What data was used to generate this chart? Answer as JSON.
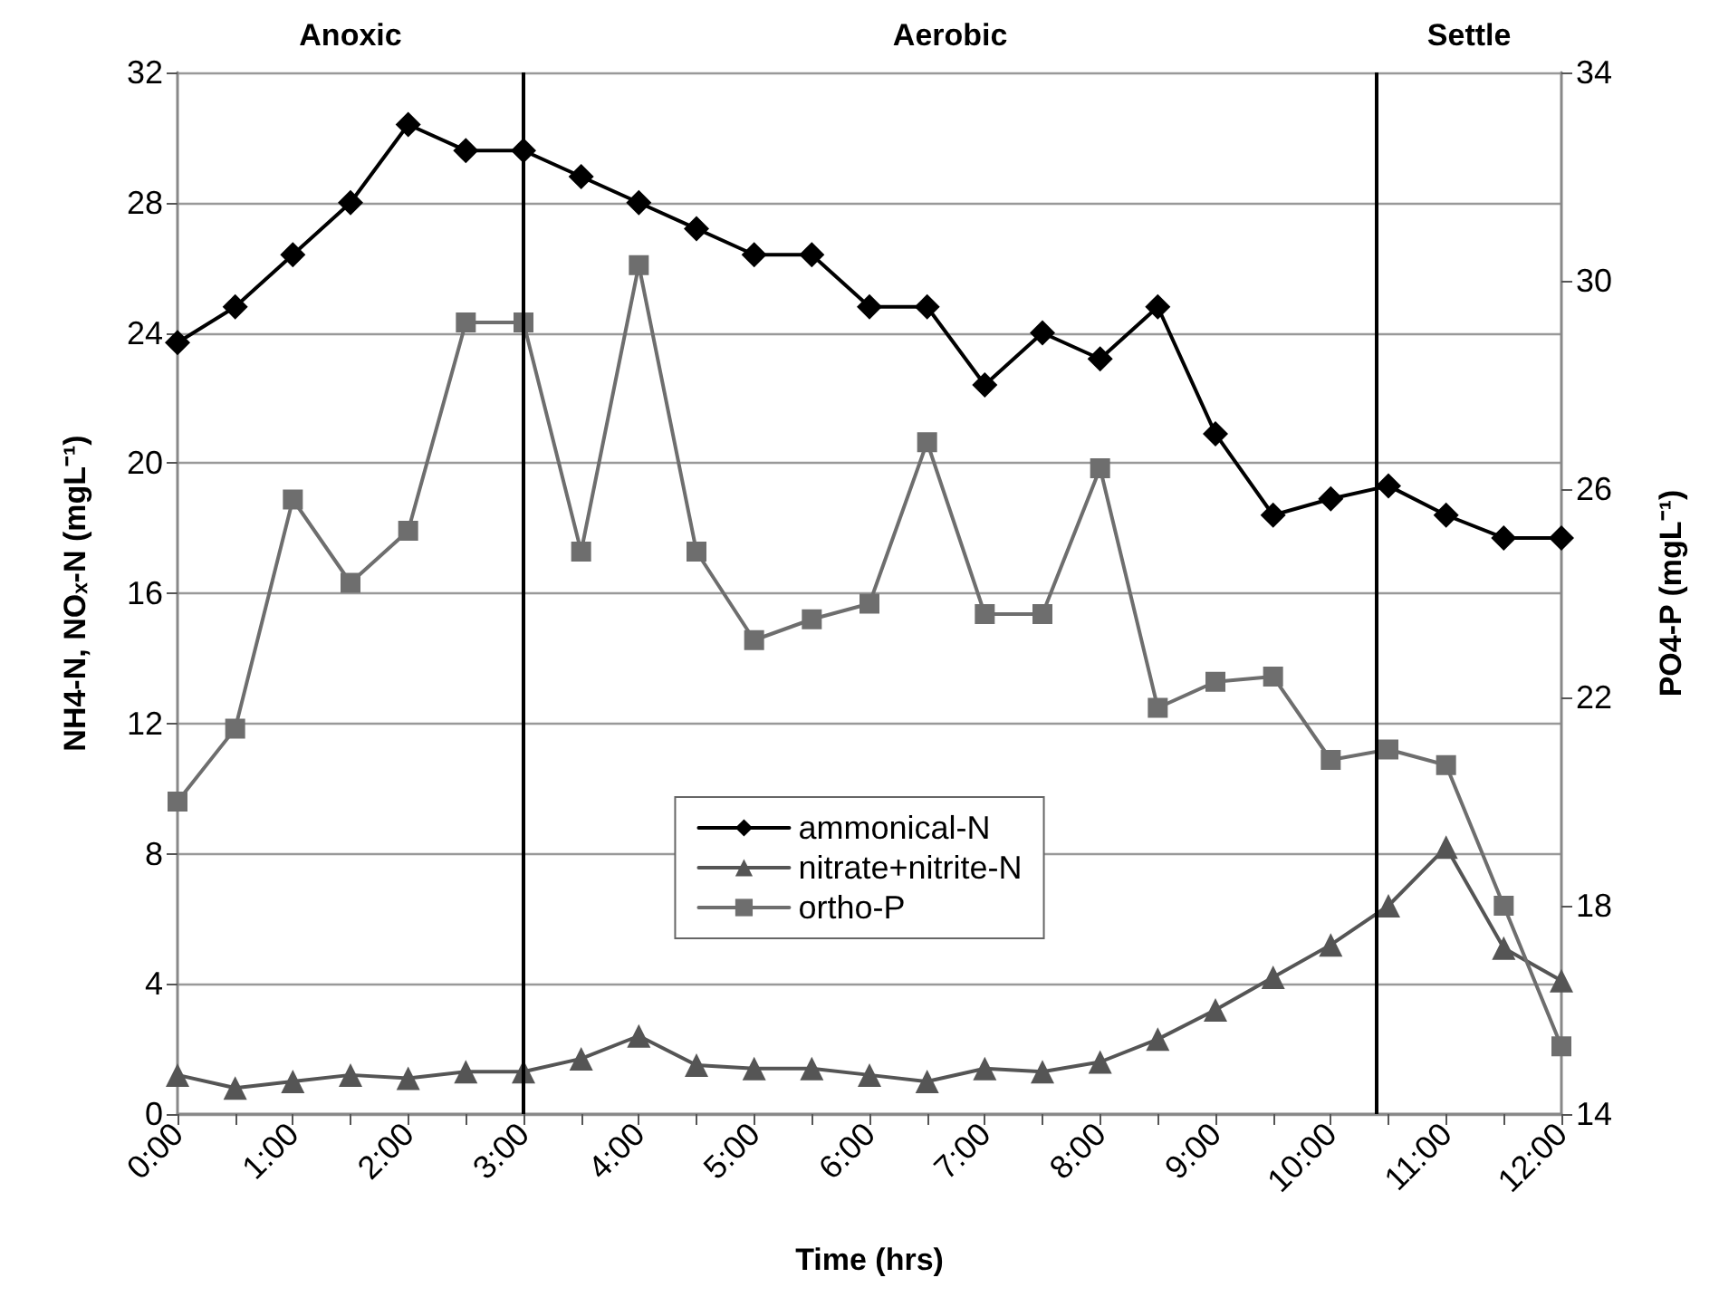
{
  "chart_data": {
    "type": "line",
    "xlabel": "Time (hrs)",
    "ylabel": "NH4-N, NOₓ-N (mgL⁻¹)",
    "y2label": "PO4-P (mgL⁻¹)",
    "x": [
      0,
      0.5,
      1,
      1.5,
      2,
      2.5,
      3,
      3.5,
      4,
      4.5,
      5,
      5.5,
      6,
      6.5,
      7,
      7.5,
      8,
      8.5,
      9,
      9.5,
      10,
      10.5,
      11,
      11.5,
      12
    ],
    "series": [
      {
        "name": "ammonical-N",
        "color": "#000000",
        "marker": "diamond",
        "values": [
          23.7,
          24.8,
          26.4,
          28,
          30.4,
          29.6,
          29.6,
          28.8,
          28,
          27.2,
          26.4,
          26.4,
          24.8,
          24.8,
          22.4,
          24,
          23.2,
          24.8,
          20.9,
          18.4,
          18.9,
          19.3,
          18.4,
          17.7,
          17.7
        ]
      },
      {
        "name": "nitrate+nitrite-N",
        "color": "#555555",
        "marker": "triangle",
        "values": [
          1.2,
          0.8,
          1,
          1.2,
          1.1,
          1.3,
          1.3,
          1.7,
          2.4,
          1.5,
          1.4,
          1.4,
          1.2,
          1,
          1.4,
          1.3,
          1.6,
          2.3,
          3.2,
          4.2,
          5.2,
          6.4,
          8.2,
          5.1,
          4.1
        ]
      },
      {
        "name": "ortho-P",
        "color": "#6e6e6e",
        "marker": "square",
        "axis": "y2",
        "values": [
          20,
          21.4,
          25.8,
          24.2,
          25.2,
          29.2,
          29.2,
          24.8,
          30.3,
          24.8,
          23.1,
          23.5,
          23.8,
          26.9,
          23.6,
          23.6,
          26.4,
          21.8,
          22.3,
          22.4,
          20.8,
          21,
          20.7,
          18,
          15.3
        ]
      }
    ],
    "xlim": [
      0,
      12
    ],
    "xticks": [
      {
        "value": 0,
        "label": "0:00"
      },
      {
        "value": 0.5,
        "label": null
      },
      {
        "value": 1,
        "label": "1:00"
      },
      {
        "value": 1.5,
        "label": null
      },
      {
        "value": 2,
        "label": "2:00"
      },
      {
        "value": 2.5,
        "label": null
      },
      {
        "value": 3,
        "label": "3:00"
      },
      {
        "value": 3.5,
        "label": null
      },
      {
        "value": 4,
        "label": "4:00"
      },
      {
        "value": 4.5,
        "label": null
      },
      {
        "value": 5,
        "label": "5:00"
      },
      {
        "value": 5.5,
        "label": null
      },
      {
        "value": 6,
        "label": "6:00"
      },
      {
        "value": 6.5,
        "label": null
      },
      {
        "value": 7,
        "label": "7:00"
      },
      {
        "value": 7.5,
        "label": null
      },
      {
        "value": 8,
        "label": "8:00"
      },
      {
        "value": 8.5,
        "label": null
      },
      {
        "value": 9,
        "label": "9:00"
      },
      {
        "value": 9.5,
        "label": null
      },
      {
        "value": 10,
        "label": "10:00"
      },
      {
        "value": 10.5,
        "label": null
      },
      {
        "value": 11,
        "label": "11:00"
      },
      {
        "value": 11.5,
        "label": null
      },
      {
        "value": 12,
        "label": "12:00"
      }
    ],
    "ylim": [
      0,
      32
    ],
    "yticks": [
      0,
      4,
      8,
      12,
      16,
      20,
      24,
      28,
      32
    ],
    "y2lim": [
      14,
      34
    ],
    "y2ticks": [
      14,
      18,
      22,
      26,
      30,
      34
    ],
    "ref_lines": [
      {
        "axis": "x",
        "value": 3,
        "color": "#000000"
      },
      {
        "axis": "x",
        "value": 10.4,
        "color": "#000000"
      }
    ],
    "annotations": [
      "Anoxic",
      "Aerobic",
      "Settle"
    ],
    "grid": "y",
    "legend": "center",
    "line_style": "solid"
  }
}
